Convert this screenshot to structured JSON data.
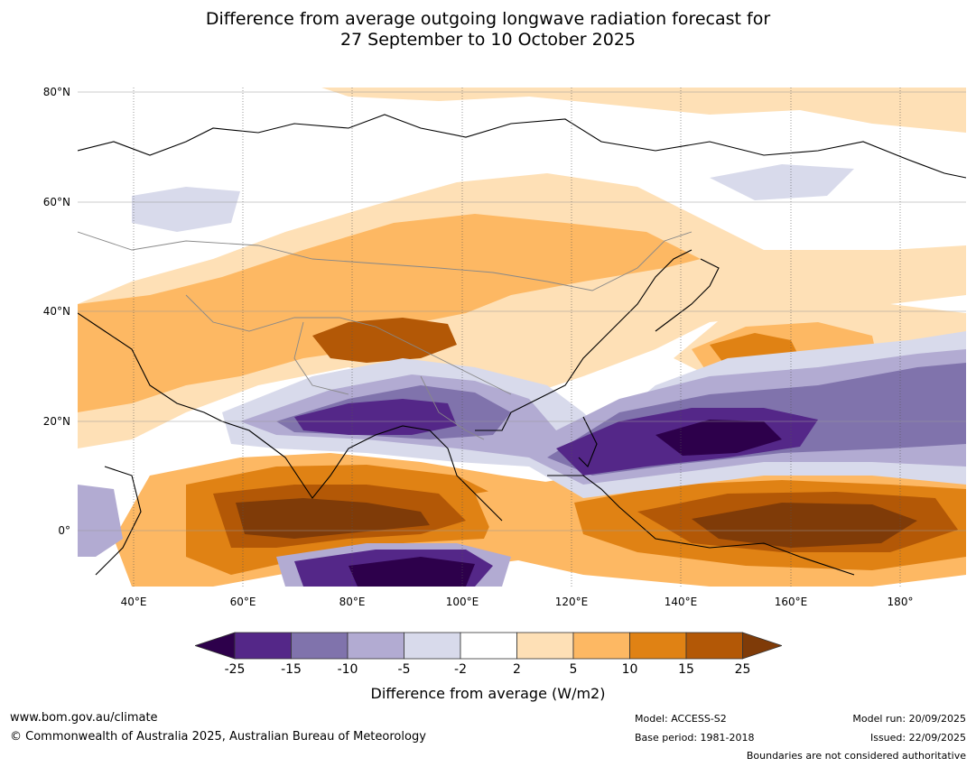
{
  "title": {
    "line1": "Difference from average outgoing longwave radiation forecast for",
    "line2": "27 September to 10 October 2025"
  },
  "map": {
    "lat_labels": [
      "80°N",
      "60°N",
      "40°N",
      "20°N",
      "0°"
    ],
    "lon_labels": [
      "40°E",
      "60°E",
      "80°E",
      "100°E",
      "120°E",
      "140°E",
      "160°E",
      "180°"
    ]
  },
  "colorbar": {
    "labels": [
      "-25",
      "-15",
      "-10",
      "-5",
      "-2",
      "2",
      "5",
      "10",
      "15",
      "25"
    ],
    "title": "Difference from average (W/m2)",
    "colors": {
      "below_min": "#2d004b",
      "bins": [
        "#542788",
        "#8073ac",
        "#b2abd2",
        "#d8daeb",
        "#ffffff",
        "#fee0b6",
        "#fdb863",
        "#e08214",
        "#b35806"
      ],
      "above_max": "#7f3b08"
    }
  },
  "footer": {
    "url": "www.bom.gov.au/climate",
    "copyright": "© Commonwealth of Australia 2025, Australian Bureau of Meteorology",
    "model": "Model: ACCESS-S2",
    "base_period": "Base period: 1981-2018",
    "model_run": "Model run: 20/09/2025",
    "issued": "Issued: 22/09/2025",
    "disclaimer": "Boundaries are not considered authoritative"
  }
}
